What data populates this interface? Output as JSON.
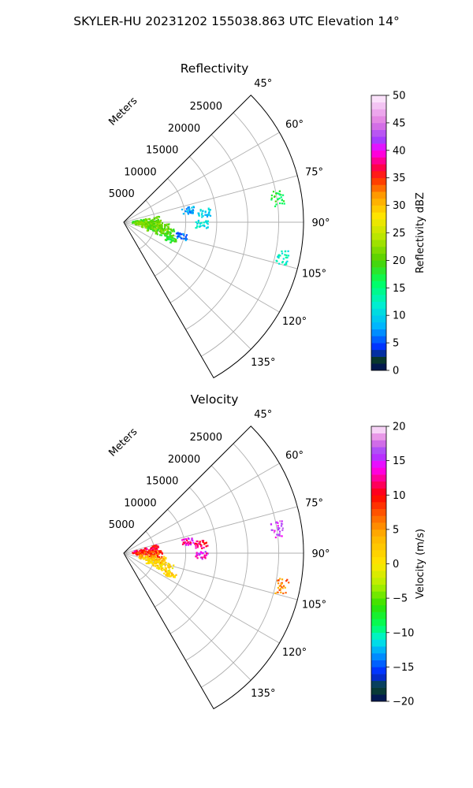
{
  "suptitle": "SKYLER-HU  20231202  155038.863 UTC Elevation 14°",
  "chart_data": [
    {
      "type": "ppi-sector",
      "title": "Reflectivity",
      "radial_label": "Meters",
      "azimuth_range_deg": [
        45,
        150
      ],
      "angle_ticks": [
        45,
        60,
        75,
        90,
        105,
        120,
        135
      ],
      "angle_tick_labels": [
        "45°",
        "60°",
        "75°",
        "90°",
        "105°",
        "120°",
        "135°"
      ],
      "r_max_m": 29000,
      "r_ticks": [
        5000,
        10000,
        15000,
        20000,
        25000
      ],
      "r_tick_labels": [
        "5000",
        "10000",
        "15000",
        "20000",
        "25000"
      ],
      "grid": true,
      "colorbar": {
        "label": "Reflectivity dBZ",
        "range": [
          0,
          50
        ],
        "ticks": [
          0,
          5,
          10,
          15,
          20,
          25,
          30,
          35,
          40,
          45,
          50
        ],
        "tick_labels": [
          "0",
          "5",
          "10",
          "15",
          "20",
          "25",
          "30",
          "35",
          "40",
          "45",
          "50"
        ],
        "color_stops": [
          {
            "v": 0,
            "c": "#000a5f"
          },
          {
            "v": 2,
            "c": "#0a3a2a"
          },
          {
            "v": 4,
            "c": "#0028ff"
          },
          {
            "v": 8,
            "c": "#00b4ff"
          },
          {
            "v": 12,
            "c": "#00f0d0"
          },
          {
            "v": 16,
            "c": "#00ff60"
          },
          {
            "v": 20,
            "c": "#50d000"
          },
          {
            "v": 24,
            "c": "#b4e600"
          },
          {
            "v": 28,
            "c": "#ffe600"
          },
          {
            "v": 32,
            "c": "#ff9600"
          },
          {
            "v": 35,
            "c": "#ff2800"
          },
          {
            "v": 37,
            "c": "#ff0050"
          },
          {
            "v": 40,
            "c": "#ff00ff"
          },
          {
            "v": 42,
            "c": "#a040ff"
          },
          {
            "v": 45,
            "c": "#e07ae0"
          },
          {
            "v": 50,
            "c": "#fff0ff"
          }
        ]
      },
      "echoes": [
        {
          "az": 85,
          "r_km": 3.5,
          "value": 20
        },
        {
          "az": 92,
          "r_km": 4.0,
          "value": 22
        },
        {
          "az": 97,
          "r_km": 5.0,
          "value": 21
        },
        {
          "az": 103,
          "r_km": 6.0,
          "value": 20
        },
        {
          "az": 110,
          "r_km": 8.0,
          "value": 18
        },
        {
          "az": 79,
          "r_km": 10.5,
          "value": 8
        },
        {
          "az": 83,
          "r_km": 13.0,
          "value": 10
        },
        {
          "az": 91,
          "r_km": 12.5,
          "value": 11
        },
        {
          "az": 103,
          "r_km": 9.5,
          "value": 6
        },
        {
          "az": 81,
          "r_km": 25.0,
          "value": 17
        },
        {
          "az": 102,
          "r_km": 26.0,
          "value": 12
        }
      ]
    },
    {
      "type": "ppi-sector",
      "title": "Velocity",
      "radial_label": "Meters",
      "azimuth_range_deg": [
        45,
        150
      ],
      "angle_ticks": [
        45,
        60,
        75,
        90,
        105,
        120,
        135
      ],
      "angle_tick_labels": [
        "45°",
        "60°",
        "75°",
        "90°",
        "105°",
        "120°",
        "135°"
      ],
      "r_max_m": 29000,
      "r_ticks": [
        5000,
        10000,
        15000,
        20000,
        25000
      ],
      "r_tick_labels": [
        "5000",
        "10000",
        "15000",
        "20000",
        "25000"
      ],
      "grid": true,
      "colorbar": {
        "label": "Velocity (m/s)",
        "range": [
          -20,
          20
        ],
        "ticks": [
          -20,
          -15,
          -10,
          -5,
          0,
          5,
          10,
          15,
          20
        ],
        "tick_labels": [
          "−20",
          "−15",
          "−10",
          "−5",
          "0",
          "5",
          "10",
          "15",
          "20"
        ],
        "color_stops": [
          {
            "v": -20,
            "c": "#000a5f"
          },
          {
            "v": -18,
            "c": "#0a4a2a"
          },
          {
            "v": -16,
            "c": "#0020ff"
          },
          {
            "v": -13,
            "c": "#00a0ff"
          },
          {
            "v": -11,
            "c": "#00f0e0"
          },
          {
            "v": -9,
            "c": "#00ff60"
          },
          {
            "v": -6,
            "c": "#30e000"
          },
          {
            "v": -3,
            "c": "#b4f000"
          },
          {
            "v": 0,
            "c": "#ffe600"
          },
          {
            "v": 4,
            "c": "#ffb400"
          },
          {
            "v": 7,
            "c": "#ff6400"
          },
          {
            "v": 10,
            "c": "#ff0000"
          },
          {
            "v": 12,
            "c": "#ff0078"
          },
          {
            "v": 14,
            "c": "#ff00ff"
          },
          {
            "v": 16,
            "c": "#a040ff"
          },
          {
            "v": 18,
            "c": "#e07ae0"
          },
          {
            "v": 20,
            "c": "#fff0ff"
          }
        ]
      },
      "echoes": [
        {
          "az": 80,
          "r_km": 3.5,
          "value": 11
        },
        {
          "az": 90,
          "r_km": 4.0,
          "value": 8
        },
        {
          "az": 100,
          "r_km": 4.5,
          "value": 3
        },
        {
          "az": 108,
          "r_km": 6.0,
          "value": 1
        },
        {
          "az": 115,
          "r_km": 8.0,
          "value": 2
        },
        {
          "az": 79,
          "r_km": 10.5,
          "value": 13
        },
        {
          "az": 83,
          "r_km": 12.5,
          "value": 11
        },
        {
          "az": 91,
          "r_km": 12.5,
          "value": 14
        },
        {
          "az": 81,
          "r_km": 25.0,
          "value": 16
        },
        {
          "az": 102,
          "r_km": 26.0,
          "value": 6
        }
      ]
    }
  ]
}
